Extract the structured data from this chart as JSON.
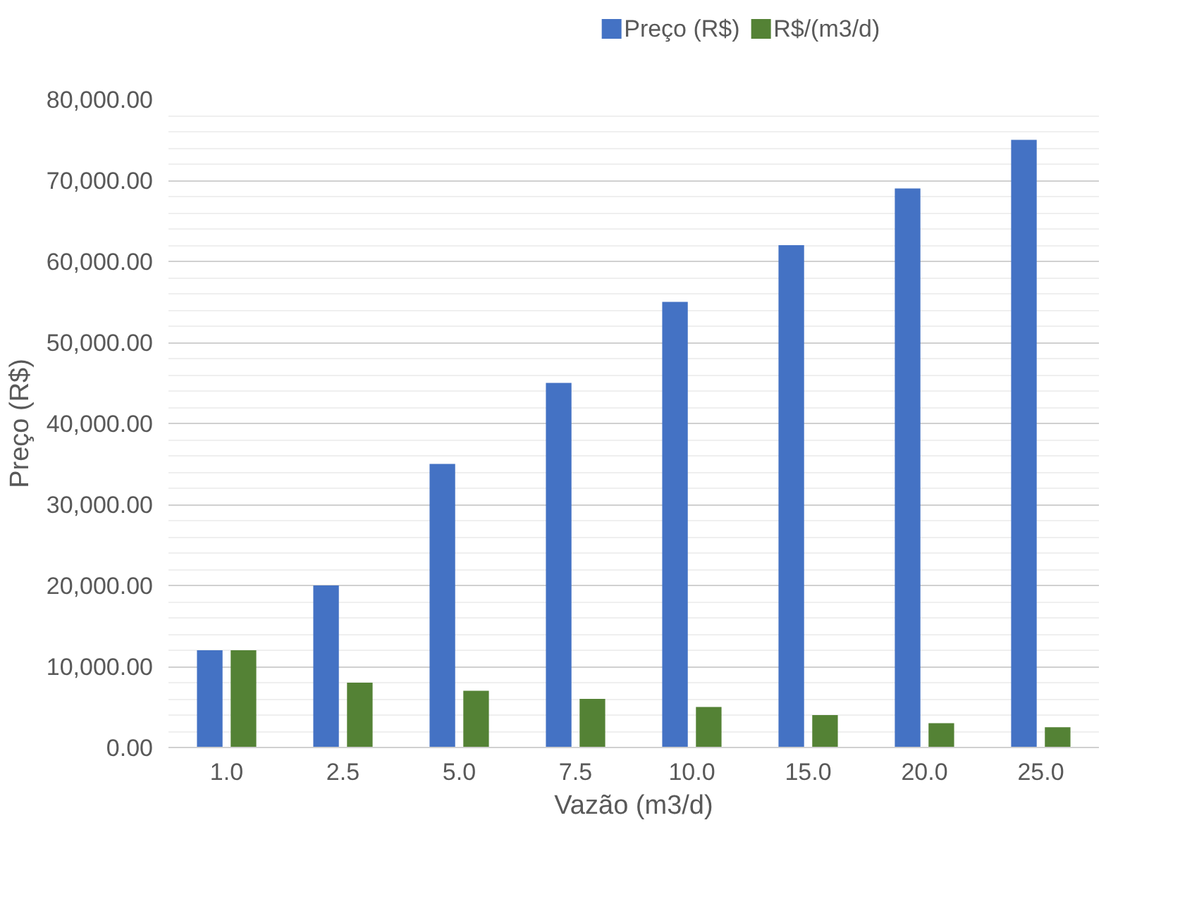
{
  "chart_data": {
    "type": "bar",
    "xlabel": "Vazão (m3/d)",
    "ylabel": "Preço (R$)",
    "categories": [
      "1.0",
      "2.5",
      "5.0",
      "7.5",
      "10.0",
      "15.0",
      "20.0",
      "25.0"
    ],
    "series": [
      {
        "name": "Preço (R$)",
        "color": "#4472c4",
        "values": [
          12000,
          20000,
          35000,
          45000,
          55000,
          62000,
          69000,
          75000
        ]
      },
      {
        "name": "R$/(m3/d)",
        "color": "#548235",
        "values": [
          12000,
          8000,
          7000,
          6000,
          5000,
          4000,
          3000,
          2500
        ]
      }
    ],
    "ylim": [
      0,
      80000
    ],
    "yticks": [
      {
        "value": 0,
        "label": "0.00"
      },
      {
        "value": 10000,
        "label": "10,000.00"
      },
      {
        "value": 20000,
        "label": "20,000.00"
      },
      {
        "value": 30000,
        "label": "30,000.00"
      },
      {
        "value": 40000,
        "label": "40,000.00"
      },
      {
        "value": 50000,
        "label": "50,000.00"
      },
      {
        "value": 60000,
        "label": "60,000.00"
      },
      {
        "value": 70000,
        "label": "70,000.00"
      },
      {
        "value": 80000,
        "label": "80,000.00"
      }
    ],
    "grid": "y",
    "legend": "top"
  }
}
